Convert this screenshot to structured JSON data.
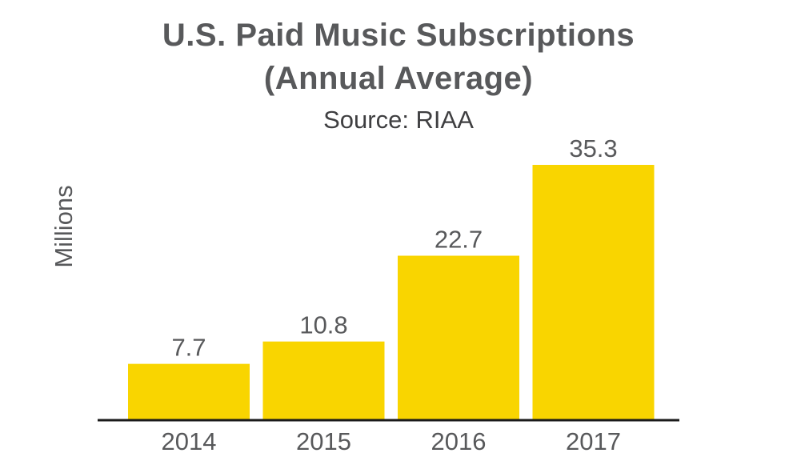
{
  "chart_data": {
    "type": "bar",
    "title_lines": [
      "U.S. Paid Music Subscriptions",
      "(Annual Average)"
    ],
    "subtitle": "Source: RIAA",
    "ylabel": "Millions",
    "xlabel": "",
    "categories": [
      "2014",
      "2015",
      "2016",
      "2017"
    ],
    "values": [
      7.7,
      10.8,
      22.7,
      35.3
    ],
    "value_labels": [
      "7.7",
      "10.8",
      "22.7",
      "35.3"
    ],
    "ylim": [
      0,
      35.3
    ],
    "grid": false,
    "legend": "none",
    "colors": {
      "bar": "#f9d500",
      "axis": "#1a1a1a",
      "text": "#58595b"
    }
  }
}
